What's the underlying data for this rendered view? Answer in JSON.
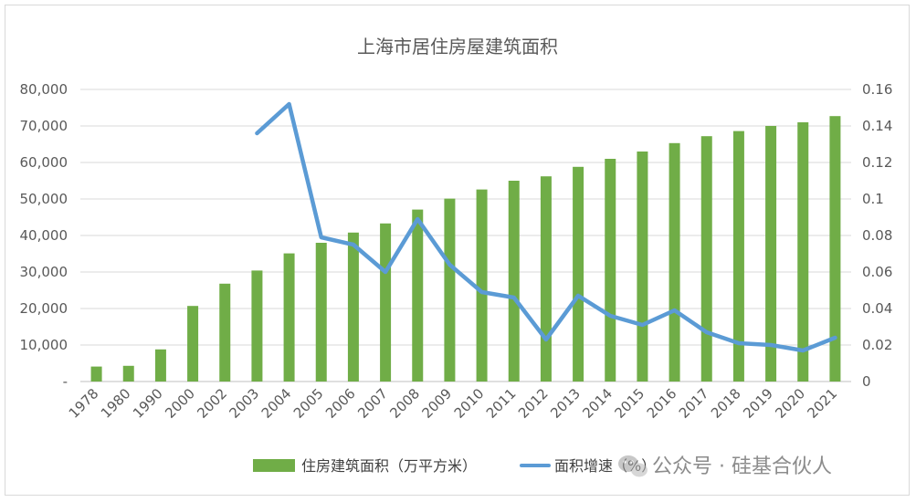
{
  "chart_data": {
    "type": "bar",
    "title": "上海市居住房屋建筑面积",
    "categories": [
      "1978",
      "1980",
      "1990",
      "2000",
      "2002",
      "2003",
      "2004",
      "2005",
      "2006",
      "2007",
      "2008",
      "2009",
      "2010",
      "2011",
      "2012",
      "2013",
      "2014",
      "2015",
      "2016",
      "2017",
      "2018",
      "2019",
      "2020",
      "2021"
    ],
    "series": [
      {
        "name": "住房建筑面积（万平方米）",
        "kind": "bar",
        "axis": "left",
        "color": "#70ad47",
        "values": [
          4100,
          4300,
          8800,
          20700,
          26800,
          30400,
          35100,
          38000,
          40800,
          43300,
          47100,
          50100,
          52600,
          55000,
          56200,
          58800,
          61000,
          63000,
          65300,
          67200,
          68600,
          70000,
          71000,
          72700
        ]
      },
      {
        "name": "面积增速（%）",
        "kind": "line",
        "axis": "right",
        "color": "#5b9bd5",
        "values": [
          null,
          null,
          null,
          null,
          null,
          0.136,
          0.152,
          0.079,
          0.075,
          0.06,
          0.089,
          0.064,
          0.049,
          0.046,
          0.023,
          0.047,
          0.036,
          0.031,
          0.039,
          0.027,
          0.021,
          0.02,
          0.017,
          0.024
        ]
      }
    ],
    "y_left": {
      "min": 0,
      "max": 80000,
      "step": 10000,
      "tick_labels": [
        "-",
        "10,000",
        "20,000",
        "30,000",
        "40,000",
        "50,000",
        "60,000",
        "70,000",
        "80,000"
      ]
    },
    "y_right": {
      "min": 0,
      "max": 0.16,
      "step": 0.02,
      "tick_labels": [
        "0",
        "0.02",
        "0.04",
        "0.06",
        "0.08",
        "0.1",
        "0.12",
        "0.14",
        "0.16"
      ]
    },
    "grid": true,
    "legend_position": "bottom"
  },
  "watermark": "公众号 · 硅基合伙人",
  "watermark_icon": "wechat-icon"
}
